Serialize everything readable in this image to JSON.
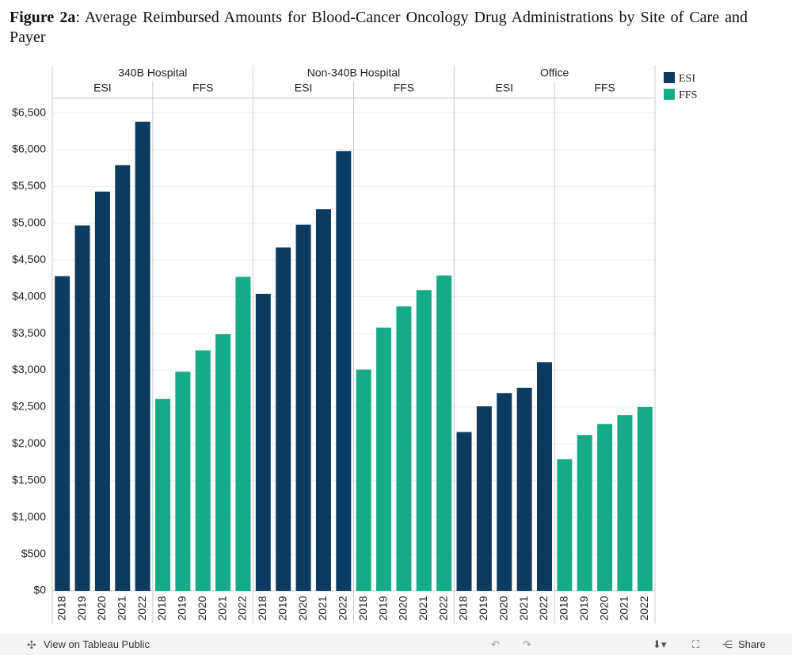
{
  "chart_data": {
    "type": "bar",
    "title_label": "Figure 2a",
    "title": ": Average Reimbursed Amounts for Blood-Cancer Oncology Drug Administrations by Site of Care and Payer",
    "categories": [
      "2018",
      "2019",
      "2020",
      "2021",
      "2022"
    ],
    "groups": [
      {
        "name": "340B Hospital",
        "series": [
          {
            "name": "ESI",
            "values": [
              4280,
              4970,
              5430,
              5790,
              6380
            ]
          },
          {
            "name": "FFS",
            "values": [
              2610,
              2980,
              3270,
              3490,
              4270
            ]
          }
        ]
      },
      {
        "name": "Non-340B Hospital",
        "series": [
          {
            "name": "ESI",
            "values": [
              4040,
              4670,
              4980,
              5190,
              5980
            ]
          },
          {
            "name": "FFS",
            "values": [
              3010,
              3580,
              3870,
              4090,
              4290
            ]
          }
        ]
      },
      {
        "name": "Office",
        "series": [
          {
            "name": "ESI",
            "values": [
              2160,
              2510,
              2690,
              2760,
              3110
            ]
          },
          {
            "name": "FFS",
            "values": [
              1790,
              2120,
              2270,
              2390,
              2500
            ]
          }
        ]
      }
    ],
    "legend": [
      {
        "name": "ESI",
        "color": "#0d3b5f"
      },
      {
        "name": "FFS",
        "color": "#14ab86"
      }
    ],
    "ylim": [
      0,
      6700
    ],
    "yticks": [
      {
        "value": 0,
        "label": "$0"
      },
      {
        "value": 500,
        "label": "$500"
      },
      {
        "value": 1000,
        "label": "$1,000"
      },
      {
        "value": 1500,
        "label": "$1,500"
      },
      {
        "value": 2000,
        "label": "$2,000"
      },
      {
        "value": 2500,
        "label": "$2,500"
      },
      {
        "value": 3000,
        "label": "$3,000"
      },
      {
        "value": 3500,
        "label": "$3,500"
      },
      {
        "value": 4000,
        "label": "$4,000"
      },
      {
        "value": 4500,
        "label": "$4,500"
      },
      {
        "value": 5000,
        "label": "$5,000"
      },
      {
        "value": 5500,
        "label": "$5,500"
      },
      {
        "value": 6000,
        "label": "$6,000"
      },
      {
        "value": 6500,
        "label": "$6,500"
      }
    ],
    "grid": true
  },
  "toolbar": {
    "view_link": "View on Tableau Public",
    "share": "Share"
  }
}
